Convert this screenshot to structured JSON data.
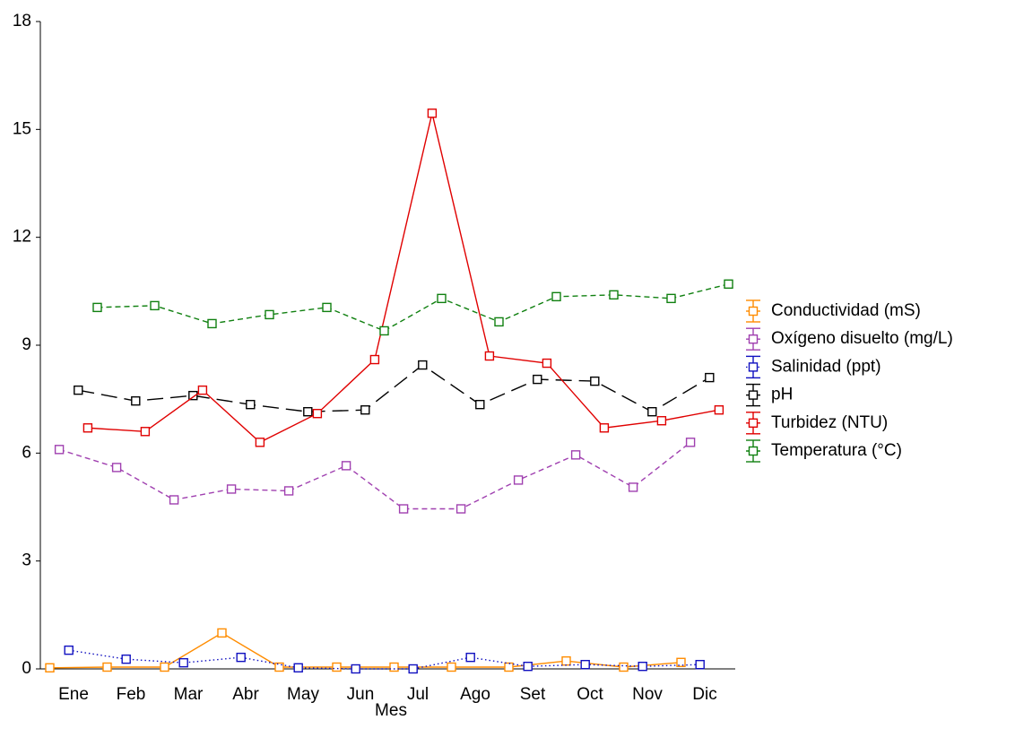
{
  "chart_data": {
    "type": "line",
    "x_label": "Mes",
    "categories": [
      "Ene",
      "Feb",
      "Mar",
      "Abr",
      "May",
      "Jun",
      "Jul",
      "Ago",
      "Set",
      "Oct",
      "Nov",
      "Dic"
    ],
    "ylim": [
      0,
      18
    ],
    "yticks": [
      0,
      3,
      6,
      9,
      12,
      15,
      18
    ],
    "legend": "right",
    "series": [
      {
        "name": "Conductividad (mS)",
        "color": "#ff8c00",
        "dash": "solid",
        "values": [
          0.03,
          0.05,
          0.05,
          1.0,
          0.05,
          0.05,
          0.05,
          0.05,
          0.05,
          0.22,
          0.05,
          0.18
        ]
      },
      {
        "name": "Oxígeno disuelto (mg/L)",
        "color": "#a040b0",
        "dash": "dashed",
        "values": [
          6.1,
          5.6,
          4.7,
          5.0,
          4.95,
          5.65,
          4.45,
          4.45,
          5.25,
          5.95,
          5.05,
          6.3
        ]
      },
      {
        "name": "Salinidad (ppt)",
        "color": "#1010c0",
        "dash": "dotted",
        "values": [
          0.52,
          0.27,
          0.17,
          0.32,
          0.03,
          0.0,
          0.0,
          0.32,
          0.07,
          0.12,
          0.07,
          0.12
        ]
      },
      {
        "name": "pH",
        "color": "#000000",
        "dash": "longdash",
        "values": [
          7.75,
          7.45,
          7.6,
          7.35,
          7.15,
          7.2,
          8.45,
          7.35,
          8.05,
          8.0,
          7.15,
          8.1
        ]
      },
      {
        "name": "Turbidez (NTU)",
        "color": "#e00000",
        "dash": "solid",
        "values": [
          6.7,
          6.6,
          7.75,
          6.3,
          7.1,
          8.6,
          15.45,
          8.7,
          8.5,
          6.7,
          6.9,
          7.2
        ]
      },
      {
        "name": "Temperatura (°C)",
        "color": "#108010",
        "dash": "dashed",
        "values": [
          10.05,
          10.1,
          9.6,
          9.85,
          10.05,
          9.4,
          10.3,
          9.65,
          10.35,
          10.4,
          10.3,
          10.7
        ]
      }
    ]
  }
}
